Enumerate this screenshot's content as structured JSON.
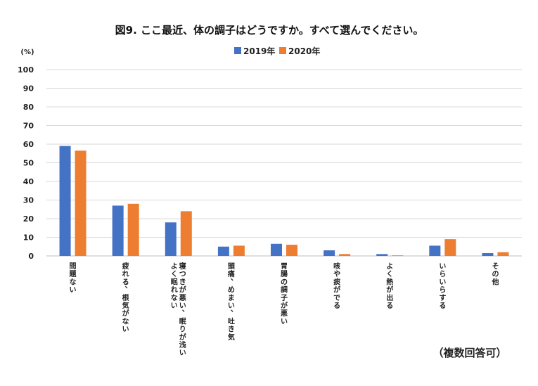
{
  "chart_data": {
    "type": "bar",
    "title": "図9. ここ最近、体の調子はどうですか。すべて選んでください。",
    "ylabel": "(%)",
    "ylim": [
      0,
      100
    ],
    "yticks": [
      "0",
      "10",
      "20",
      "30",
      "40",
      "50",
      "60",
      "70",
      "80",
      "90",
      "100"
    ],
    "grid": true,
    "legend_position": "top",
    "categories": [
      [
        "問題ない"
      ],
      [
        "疲れる、根気がない"
      ],
      [
        "寝つきが悪い、眠りが浅い",
        "よく眠れない"
      ],
      [
        "頭痛、めまい、吐き気"
      ],
      [
        "胃腸の調子が悪い"
      ],
      [
        "咳や痰がでる"
      ],
      [
        "よく熱が出る"
      ],
      [
        "いらいらする"
      ],
      [
        "その他"
      ]
    ],
    "series": [
      {
        "name": "2019年",
        "color": "#4472C4",
        "values": [
          59,
          27,
          18,
          5,
          6.5,
          3,
          1,
          5.5,
          1.5
        ]
      },
      {
        "name": "2020年",
        "color": "#ED7D31",
        "values": [
          56.5,
          28,
          24,
          5.5,
          6,
          1,
          0.3,
          9,
          2
        ]
      }
    ],
    "note": "（複数回答可）"
  }
}
